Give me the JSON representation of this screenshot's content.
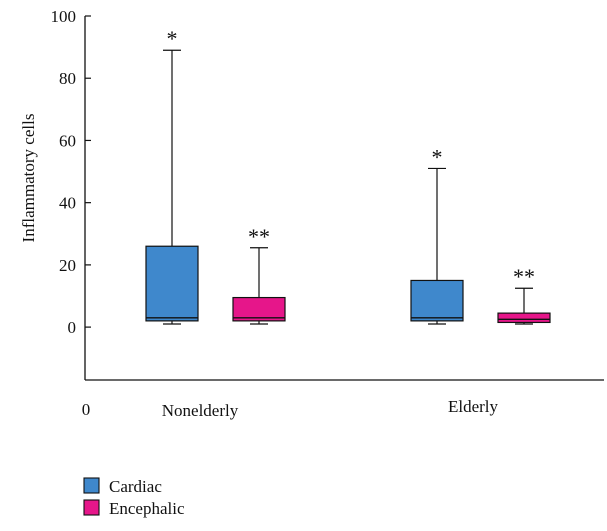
{
  "chart_data": {
    "type": "box",
    "title": "",
    "xlabel": "",
    "ylabel": "Inflammatory cells",
    "ylim": [
      -17,
      100
    ],
    "yticks": [
      0,
      20,
      40,
      60,
      80,
      100
    ],
    "origin_label": "0",
    "grid": false,
    "legend_position": "bottom-left",
    "categories": [
      "Nonelderly",
      "Elderly"
    ],
    "series": [
      {
        "name": "Cardiac",
        "color": "#3f88cc",
        "boxes": [
          {
            "min": 1,
            "q1": 2,
            "median": 3,
            "q3": 26,
            "max": 89,
            "annotation": "*"
          },
          {
            "min": 1,
            "q1": 2,
            "median": 3,
            "q3": 15,
            "max": 51,
            "annotation": "*"
          }
        ]
      },
      {
        "name": "Encephalic",
        "color": "#e6168a",
        "boxes": [
          {
            "min": 1,
            "q1": 2,
            "median": 3,
            "q3": 9.5,
            "max": 25.5,
            "annotation": "**"
          },
          {
            "min": 1,
            "q1": 1.5,
            "median": 2.5,
            "q3": 4.5,
            "max": 12.5,
            "annotation": "**"
          }
        ]
      }
    ]
  }
}
